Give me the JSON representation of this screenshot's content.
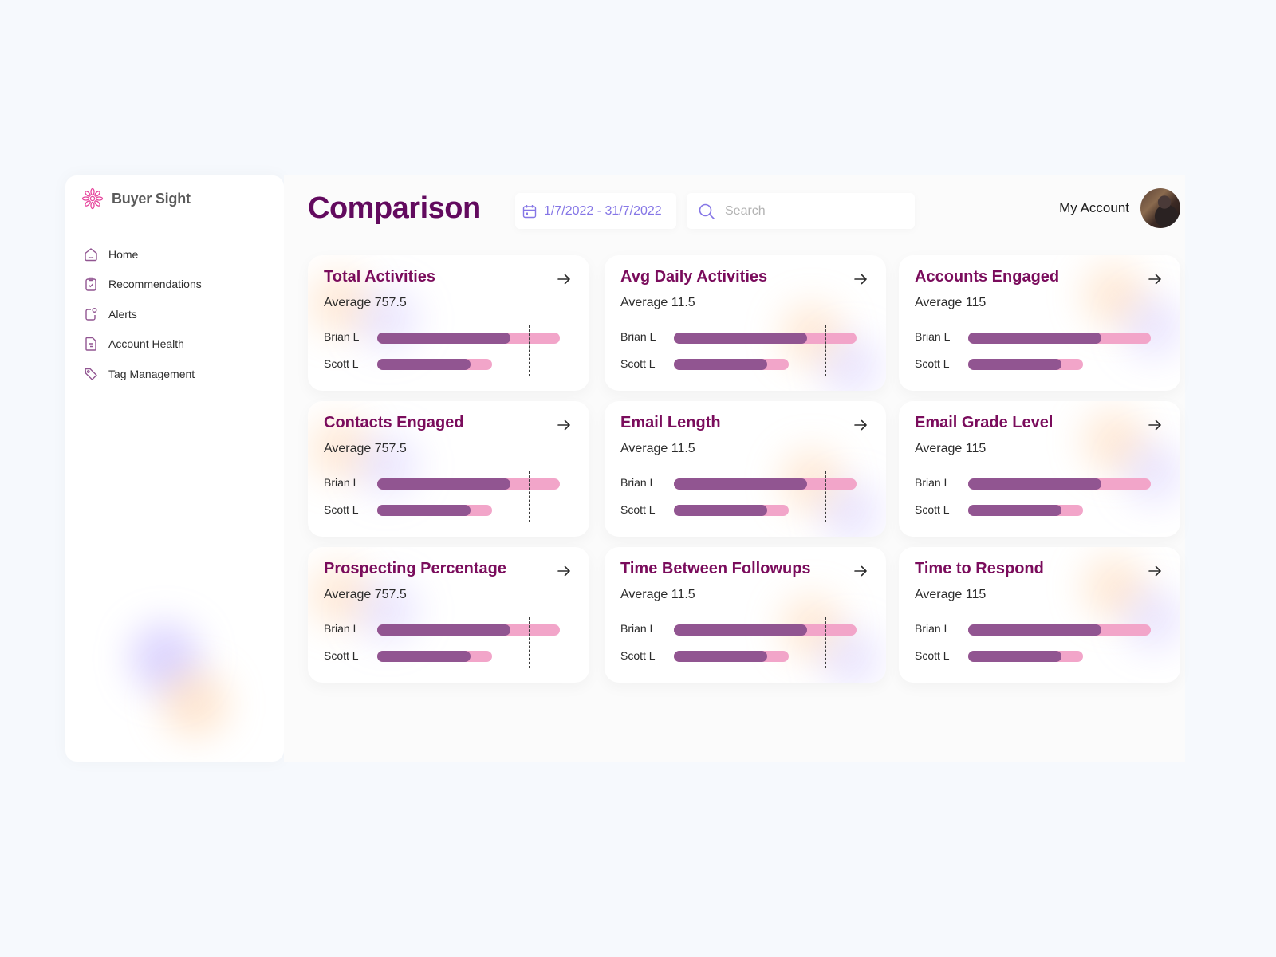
{
  "app": {
    "brand_name": "Buyer Sight"
  },
  "sidebar": {
    "items": [
      {
        "label": "Home",
        "icon": "home-icon"
      },
      {
        "label": "Recommendations",
        "icon": "clipboard-check-icon"
      },
      {
        "label": "Alerts",
        "icon": "alert-notification-icon"
      },
      {
        "label": "Account Health",
        "icon": "document-icon"
      },
      {
        "label": "Tag Management",
        "icon": "tag-icon"
      }
    ]
  },
  "header": {
    "title": "Comparison",
    "date_range": "1/7/2022 - 31/7/2022",
    "search_placeholder": "Search",
    "search_value": "",
    "account_label": "My Account"
  },
  "colors": {
    "title": "#620a5e",
    "card_title": "#7a0c5c",
    "bar_primary": "#915591",
    "bar_secondary": "#f2a5c9",
    "date_accent": "#8576e6"
  },
  "cards": [
    {
      "title": "Total Activities",
      "average": "Average 757.5"
    },
    {
      "title": "Avg Daily Activities",
      "average": "Average 11.5"
    },
    {
      "title": "Accounts Engaged",
      "average": "Average 115"
    },
    {
      "title": "Contacts Engaged",
      "average": "Average 757.5"
    },
    {
      "title": "Email Length",
      "average": "Average 11.5"
    },
    {
      "title": "Email Grade Level",
      "average": "Average 115"
    },
    {
      "title": "Prospecting Percentage",
      "average": "Average 757.5"
    },
    {
      "title": "Time Between Followups",
      "average": "Average 11.5"
    },
    {
      "title": "Time to Respond",
      "average": "Average 115"
    }
  ],
  "rows": [
    {
      "label": "Brian L",
      "track_pct": 100,
      "fill_pct": 73
    },
    {
      "label": "Scott L",
      "track_pct": 63,
      "fill_pct": 51
    }
  ],
  "average_marker_pct": 83
}
